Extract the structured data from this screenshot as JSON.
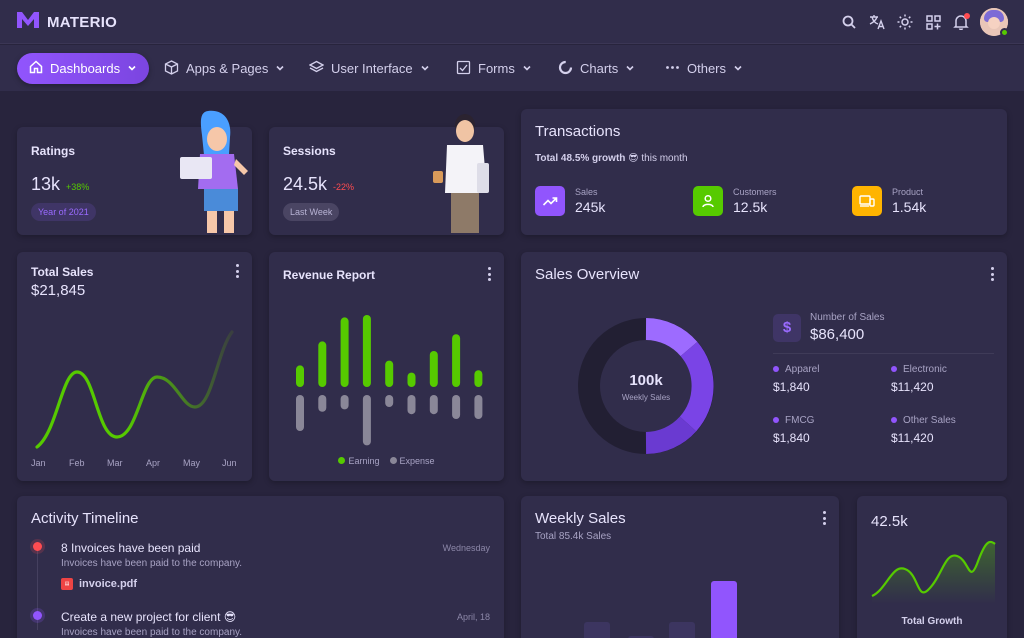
{
  "brand": {
    "name": "MATERIO"
  },
  "nav": [
    {
      "label": "Dashboards"
    },
    {
      "label": "Apps & Pages"
    },
    {
      "label": "User Interface"
    },
    {
      "label": "Forms"
    },
    {
      "label": "Charts"
    },
    {
      "label": "Others"
    }
  ],
  "ratings": {
    "title": "Ratings",
    "value": "13k",
    "change": "+38%",
    "chip": "Year of 2021"
  },
  "sessions": {
    "title": "Sessions",
    "value": "24.5k",
    "change": "-22%",
    "chip": "Last Week"
  },
  "transactions": {
    "title": "Transactions",
    "growth_bold": "Total 48.5% growth",
    "emoji": "😎",
    "growth_rest": "this month",
    "stats": [
      {
        "label": "Sales",
        "value": "245k",
        "color": "#9155fd",
        "icon": "trending-up-icon"
      },
      {
        "label": "Customers",
        "value": "12.5k",
        "color": "#56ca00",
        "icon": "user-icon"
      },
      {
        "label": "Product",
        "value": "1.54k",
        "color": "#ffb400",
        "icon": "devices-icon"
      }
    ]
  },
  "total_sales": {
    "title": "Total Sales",
    "value": "$21,845",
    "months": [
      "Jan",
      "Feb",
      "Mar",
      "Apr",
      "May",
      "Jun"
    ]
  },
  "revenue": {
    "title": "Revenue Report",
    "legend": [
      "Earning",
      "Expense"
    ],
    "earning": [
      18,
      38,
      58,
      60,
      22,
      12,
      30,
      44,
      14
    ],
    "expense": [
      30,
      14,
      12,
      42,
      10,
      16,
      16,
      20,
      20
    ]
  },
  "sales_overview": {
    "title": "Sales Overview",
    "center_value": "100k",
    "center_label": "Weekly Sales",
    "number_label": "Number of Sales",
    "number_value": "$86,400",
    "items": [
      {
        "label": "Apparel",
        "value": "$1,840"
      },
      {
        "label": "Electronic",
        "value": "$11,420"
      },
      {
        "label": "FMCG",
        "value": "$1,840"
      },
      {
        "label": "Other Sales",
        "value": "$11,420"
      }
    ]
  },
  "activity": {
    "title": "Activity Timeline",
    "items": [
      {
        "title": "8 Invoices have been paid",
        "desc": "Invoices have been paid to the company.",
        "time": "Wednesday",
        "file": "invoice.pdf",
        "color": "#ff4c51"
      },
      {
        "title": "Create a new project for client",
        "emoji": "😎",
        "desc": "Invoices have been paid to the company.",
        "time": "April, 18",
        "color": "#9155fd"
      }
    ]
  },
  "weekly_sales": {
    "title": "Weekly Sales",
    "subtitle": "Total 85.4k Sales"
  },
  "total_growth": {
    "value": "42.5k",
    "label": "Total Growth"
  }
}
